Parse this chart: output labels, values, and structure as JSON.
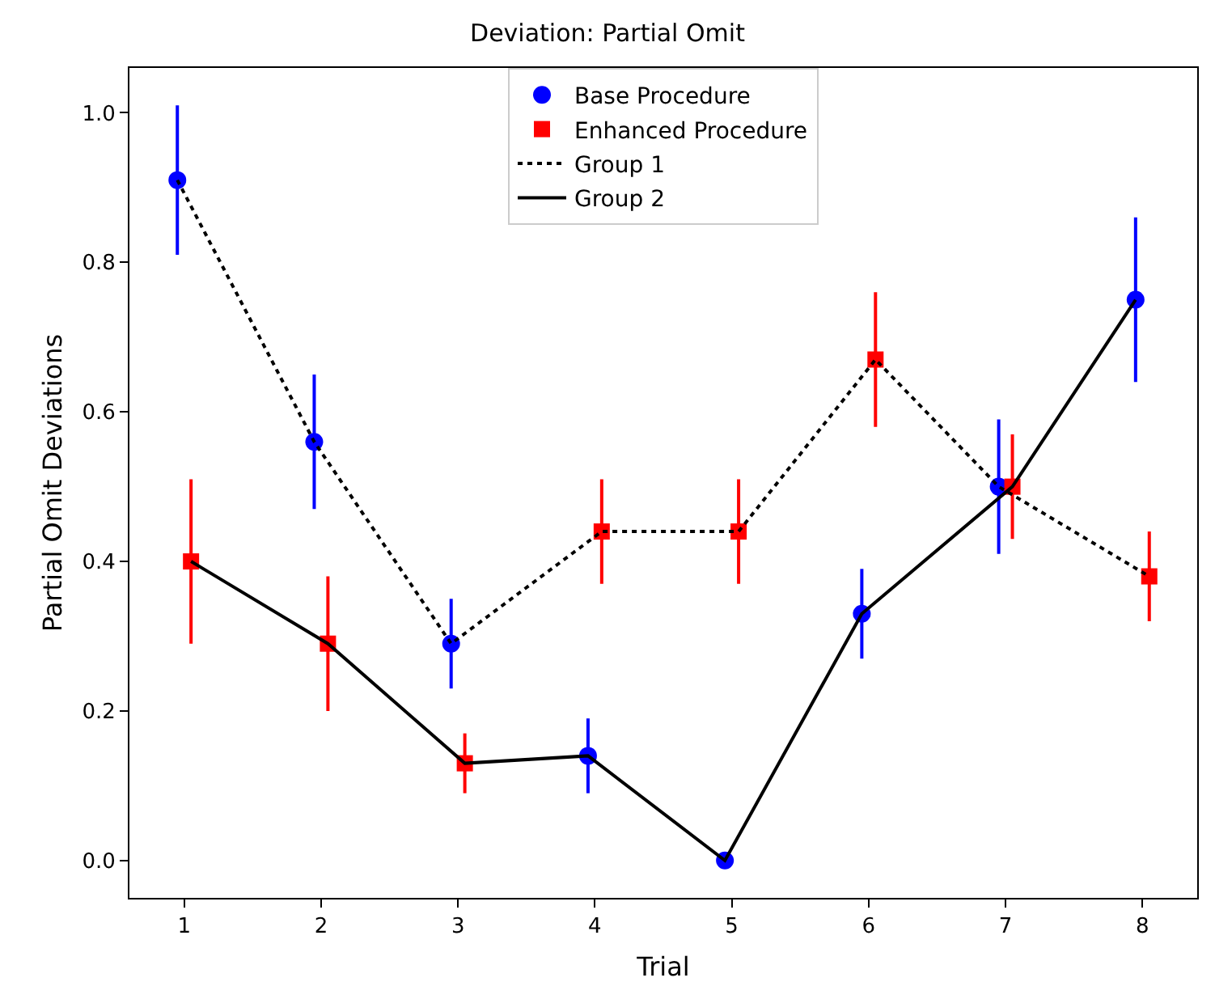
{
  "chart_data": {
    "type": "scatter",
    "title": "Deviation: Partial Omit",
    "xlabel": "Trial",
    "ylabel": "Partial Omit Deviations",
    "xlim": [
      0.6,
      8.4
    ],
    "xticks": [
      1,
      2,
      3,
      4,
      5,
      6,
      7,
      8
    ],
    "ylim": [
      -0.05,
      1.06
    ],
    "yticks": [
      {
        "value": 0,
        "label": "0.0"
      },
      0.2,
      0.4,
      0.6,
      0.8,
      {
        "value": 1,
        "label": "1.0"
      }
    ],
    "grid": false,
    "legend": "top",
    "series": [
      {
        "name": "Base Procedure",
        "color": "#0000ff",
        "marker": "circle",
        "x": [
          0.95,
          1.95,
          2.95,
          3.95,
          4.95,
          5.95,
          6.95,
          7.95
        ],
        "values": [
          0.91,
          0.56,
          0.29,
          0.14,
          0.0,
          0.33,
          0.5,
          0.75
        ],
        "errors": [
          0.1,
          0.09,
          0.06,
          0.05,
          null,
          0.06,
          0.09,
          0.11
        ]
      },
      {
        "name": "Enhanced Procedure",
        "color": "#ff0000",
        "marker": "square",
        "x": [
          1.05,
          2.05,
          3.05,
          4.05,
          5.05,
          6.05,
          7.05,
          8.05
        ],
        "values": [
          0.4,
          0.29,
          0.13,
          0.44,
          0.44,
          0.67,
          0.5,
          0.38
        ],
        "errors": [
          0.11,
          0.09,
          0.04,
          0.07,
          0.07,
          0.09,
          0.07,
          0.06
        ]
      },
      {
        "name": "Group 1",
        "type": "line",
        "color": "#000000",
        "line_style": "dotted",
        "marker": "none",
        "x": [
          0.95,
          1.95,
          2.95,
          4.05,
          5.05,
          6.05,
          6.95,
          8.05
        ],
        "values": [
          0.91,
          0.56,
          0.29,
          0.44,
          0.44,
          0.67,
          0.5,
          0.38
        ]
      },
      {
        "name": "Group 2",
        "type": "line",
        "color": "#000000",
        "line_style": "solid",
        "marker": "none",
        "x": [
          1.05,
          2.05,
          3.05,
          3.95,
          4.95,
          5.95,
          7.05,
          7.95
        ],
        "values": [
          0.4,
          0.29,
          0.13,
          0.14,
          0.0,
          0.33,
          0.5,
          0.75
        ]
      }
    ]
  }
}
